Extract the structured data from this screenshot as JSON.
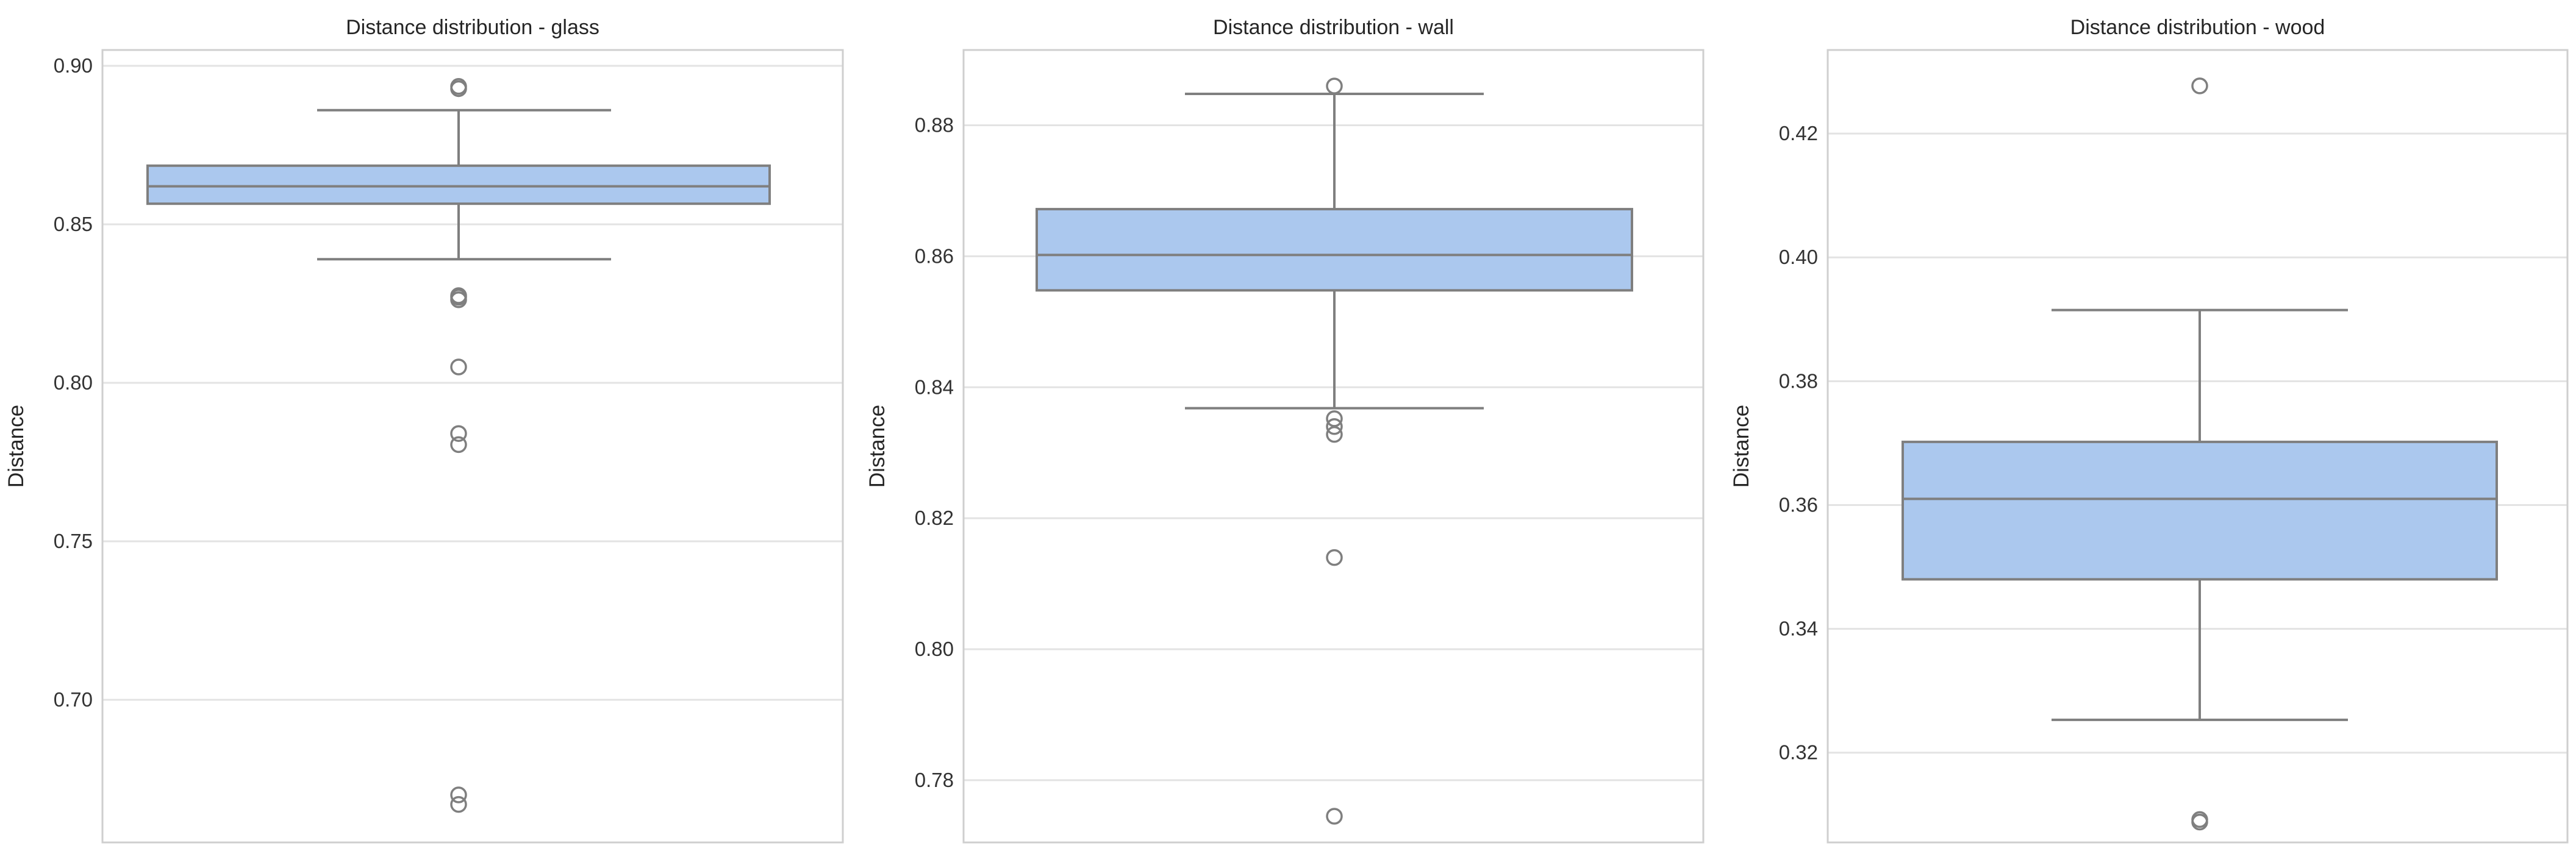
{
  "chart_data": [
    {
      "type": "box",
      "title": "Distance distribution - glass",
      "xlabel": "",
      "ylabel": "Distance",
      "ylim": [
        0.655,
        0.905
      ],
      "yticks": [
        "0.70",
        "0.75",
        "0.80",
        "0.85",
        "0.90"
      ],
      "grid": true,
      "box": {
        "whisker_low": 0.839,
        "q1": 0.8565,
        "median": 0.862,
        "q3": 0.8685,
        "whisker_high": 0.886
      },
      "outliers": [
        0.8935,
        0.8928,
        0.8275,
        0.827,
        0.8262,
        0.805,
        0.784,
        0.7805,
        0.67,
        0.667
      ],
      "colors": {
        "box_fill": "#abc8ee",
        "line": "#7f7f7f"
      }
    },
    {
      "type": "box",
      "title": "Distance distribution - wall",
      "xlabel": "",
      "ylabel": "Distance",
      "ylim": [
        0.7705,
        0.8915
      ],
      "yticks": [
        "0.78",
        "0.80",
        "0.82",
        "0.84",
        "0.86",
        "0.88"
      ],
      "grid": true,
      "box": {
        "whisker_low": 0.8368,
        "q1": 0.8548,
        "median": 0.8602,
        "q3": 0.8672,
        "whisker_high": 0.8848
      },
      "outliers": [
        0.886,
        0.8352,
        0.834,
        0.8328,
        0.814,
        0.7745
      ],
      "colors": {
        "box_fill": "#abc8ee",
        "line": "#7f7f7f"
      }
    },
    {
      "type": "box",
      "title": "Distance distribution - wood",
      "xlabel": "",
      "ylabel": "Distance",
      "ylim": [
        0.3055,
        0.4335
      ],
      "yticks": [
        "0.32",
        "0.34",
        "0.36",
        "0.38",
        "0.40",
        "0.42"
      ],
      "grid": true,
      "box": {
        "whisker_low": 0.3253,
        "q1": 0.348,
        "median": 0.361,
        "q3": 0.3702,
        "whisker_high": 0.3915
      },
      "outliers": [
        0.4277,
        0.3092,
        0.3088
      ],
      "colors": {
        "box_fill": "#abc8ee",
        "line": "#7f7f7f"
      }
    }
  ]
}
